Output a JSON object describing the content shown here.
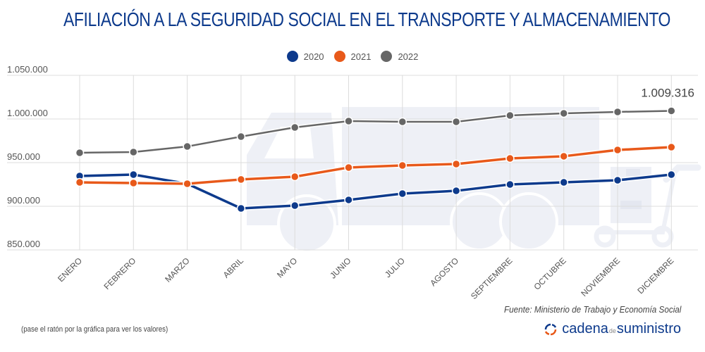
{
  "title": "AFILIACIÓN A LA SEGURIDAD SOCIAL EN EL TRANSPORTE Y ALMACENAMIENTO",
  "source": "Fuente: Ministerio de Trabajo y Economía Social",
  "hint": "(pase el ratón por la gráfica para ver los valores)",
  "brand": {
    "part1": "cadena",
    "part2": "de",
    "part3": "suministro",
    "icon": "refresh-arrows-icon",
    "icon_colors": [
      "#0d3a8c",
      "#e8591a"
    ]
  },
  "colors": {
    "2020": "#0d3a8c",
    "2021": "#e8591a",
    "2022": "#666666",
    "title": "#0d3a8c"
  },
  "chart_data": {
    "type": "line",
    "title": "AFILIACIÓN A LA SEGURIDAD SOCIAL EN EL TRANSPORTE Y ALMACENAMIENTO",
    "xlabel": "",
    "ylabel": "",
    "ylim": [
      850000,
      1050000
    ],
    "yticks": [
      850000,
      900000,
      950000,
      1000000,
      1050000
    ],
    "ytick_labels": [
      "850.000",
      "900.000",
      "950.000",
      "1.000.000",
      "1.050.000"
    ],
    "grid": true,
    "legend": "top-center",
    "categories": [
      "ENERO",
      "FEBRERO",
      "MARZO",
      "ABRIL",
      "MAYO",
      "JUNIO",
      "JULIO",
      "AGOSTO",
      "SEPTIEMBRE",
      "OCTUBRE",
      "NOVIEMBRE",
      "DICIEMBRE"
    ],
    "series": [
      {
        "name": "2020",
        "color": "#0d3a8c",
        "values": [
          934700,
          936300,
          925800,
          897600,
          900800,
          907300,
          914500,
          917700,
          925000,
          927400,
          929800,
          936300
        ]
      },
      {
        "name": "2021",
        "color": "#e8591a",
        "values": [
          927400,
          926600,
          925800,
          930700,
          933900,
          944400,
          946800,
          948400,
          954800,
          957300,
          964500,
          967700
        ]
      },
      {
        "name": "2022",
        "color": "#666666",
        "values": [
          961300,
          962100,
          968500,
          979800,
          990300,
          997600,
          996800,
          996800,
          1004000,
          1006500,
          1008100,
          1009316
        ]
      }
    ],
    "annotations": [
      {
        "series": "2022",
        "category": "DICIEMBRE",
        "text": "1.009.316"
      }
    ]
  }
}
